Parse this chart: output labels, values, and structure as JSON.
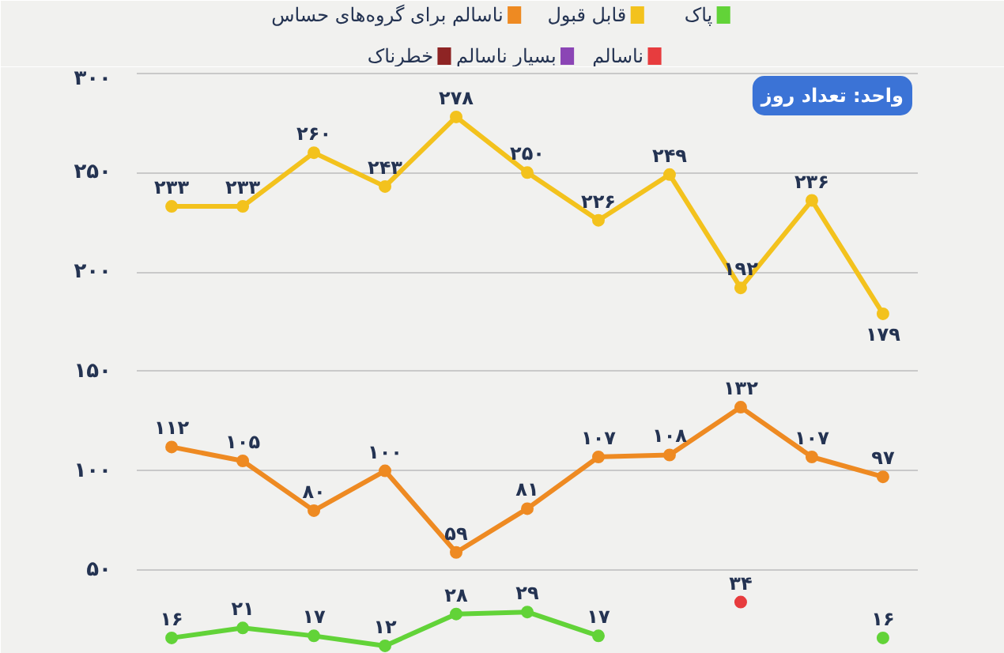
{
  "chart_data": {
    "type": "line",
    "categories": [
      null,
      null,
      null,
      null,
      null,
      null,
      null,
      null,
      null,
      null,
      null
    ],
    "ylim": [
      8,
      303
    ],
    "yticks": [
      {
        "value": 50,
        "label": "۵۰"
      },
      {
        "value": 100,
        "label": "۱۰۰"
      },
      {
        "value": 150,
        "label": "۱۵۰"
      },
      {
        "value": 200,
        "label": "۲۰۰"
      },
      {
        "value": 250,
        "label": "۲۵۰"
      },
      {
        "value": 300,
        "label": "۳۰۰"
      }
    ],
    "grid": "y",
    "tick_labels": "y",
    "marker": "circle",
    "line_style": "solid",
    "legend": "top",
    "annotations": [
      "واحد: تعداد روز"
    ],
    "series": [
      {
        "name": "پاک",
        "color": "#62d338",
        "values": [
          16,
          21,
          17,
          12,
          28,
          29,
          17,
          null,
          null,
          null,
          16
        ],
        "value_labels": [
          "۱۶",
          "۲۱",
          "۱۷",
          "۱۲",
          "۲۸",
          "۲۹",
          "۱۷",
          null,
          null,
          null,
          "۱۶"
        ]
      },
      {
        "name": "قابل قبول",
        "color": "#f3c21d",
        "values": [
          233,
          233,
          260,
          243,
          278,
          250,
          226,
          249,
          192,
          236,
          179
        ],
        "value_labels": [
          "۲۳۳",
          "۲۳۳",
          "۲۶۰",
          "۲۴۳",
          "۲۷۸",
          "۲۵۰",
          "۲۲۶",
          "۲۴۹",
          "۱۹۲",
          "۲۳۶",
          "۱۷۹"
        ]
      },
      {
        "name": "ناسالم برای گروه‌های حساس",
        "color": "#ee8a22",
        "values": [
          112,
          105,
          80,
          100,
          59,
          81,
          107,
          108,
          132,
          107,
          97
        ],
        "value_labels": [
          "۱۱۲",
          "۱۰۵",
          "۸۰",
          "۱۰۰",
          "۵۹",
          "۸۱",
          "۱۰۷",
          "۱۰۸",
          "۱۳۲",
          "۱۰۷",
          "۹۷"
        ]
      },
      {
        "name": "ناسالم",
        "color": "#e73c3e",
        "values": [
          null,
          null,
          null,
          null,
          null,
          null,
          null,
          null,
          34,
          null,
          null
        ],
        "value_labels": [
          null,
          null,
          null,
          null,
          null,
          null,
          null,
          null,
          "۳۴",
          null,
          null
        ]
      },
      {
        "name": "بسیار ناسالم",
        "color": "#8b45b5",
        "values": [
          null,
          null,
          null,
          null,
          null,
          null,
          null,
          null,
          null,
          null,
          null
        ]
      },
      {
        "name": "خطرناک",
        "color": "#8e2424",
        "values": [
          null,
          null,
          null,
          null,
          null,
          null,
          null,
          null,
          null,
          null,
          null
        ]
      }
    ]
  }
}
